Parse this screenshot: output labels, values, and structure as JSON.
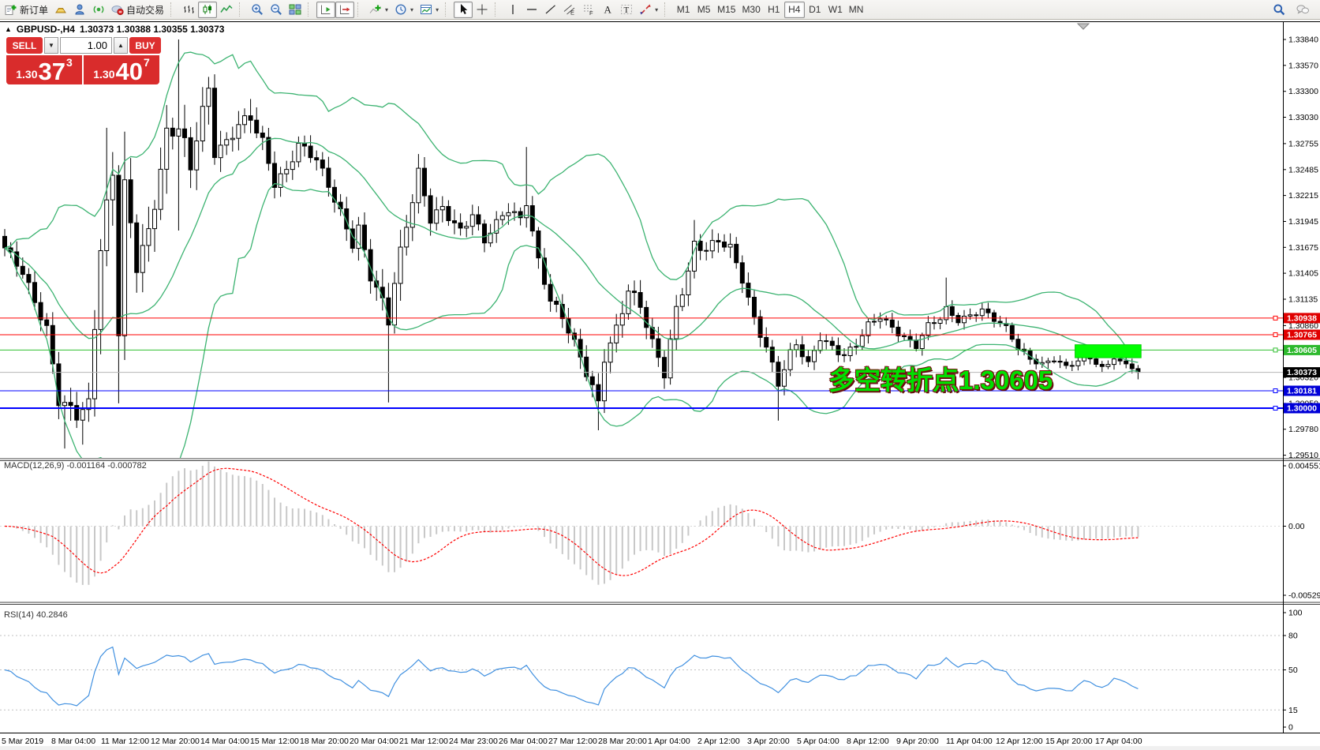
{
  "toolbar": {
    "groups": [
      {
        "name": "trade",
        "items": [
          {
            "name": "new-order-button",
            "icon": "new-order",
            "label": "新订单"
          },
          {
            "name": "market-watch-button",
            "icon": "market-watch"
          },
          {
            "name": "expert-advisors-button",
            "icon": "expert-advisors"
          },
          {
            "name": "signals-button",
            "icon": "signal"
          },
          {
            "name": "autotrading-button",
            "icon": "autotrading",
            "label": "自动交易"
          }
        ]
      },
      {
        "name": "chart-type",
        "items": [
          {
            "name": "bar-chart-button",
            "icon": "chart-bars"
          },
          {
            "name": "candlestick-chart-button",
            "icon": "chart-candles",
            "pressed": true
          },
          {
            "name": "line-chart-button",
            "icon": "chart-line"
          }
        ]
      },
      {
        "name": "zoom",
        "items": [
          {
            "name": "zoom-in-button",
            "icon": "zoom-in"
          },
          {
            "name": "zoom-out-button",
            "icon": "zoom-out"
          },
          {
            "name": "tile-windows-button",
            "icon": "tile-windows"
          }
        ]
      },
      {
        "name": "scroll",
        "items": [
          {
            "name": "auto-scroll-button",
            "icon": "autoscroll",
            "pressed": true
          },
          {
            "name": "chart-shift-button",
            "icon": "chartshift",
            "pressed": true
          }
        ]
      },
      {
        "name": "insert",
        "items": [
          {
            "name": "indicators-button",
            "icon": "indicators",
            "caret": true
          },
          {
            "name": "periods-button",
            "icon": "periods",
            "caret": true
          },
          {
            "name": "templates-button",
            "icon": "templates",
            "caret": true
          }
        ]
      },
      {
        "name": "pointer",
        "items": [
          {
            "name": "cursor-button",
            "icon": "cursor",
            "pressed": true
          },
          {
            "name": "crosshair-button",
            "icon": "crosshair"
          }
        ]
      },
      {
        "name": "objects",
        "items": [
          {
            "name": "vertical-line-button",
            "icon": "vline"
          },
          {
            "name": "horizontal-line-button",
            "icon": "hline"
          },
          {
            "name": "trendline-button",
            "icon": "trendline"
          },
          {
            "name": "channel-button",
            "icon": "channel"
          },
          {
            "name": "fibonacci-button",
            "icon": "fibonacci"
          },
          {
            "name": "text-button",
            "icon": "text"
          },
          {
            "name": "text-label-button",
            "icon": "textlabel"
          },
          {
            "name": "arrows-button",
            "icon": "arrows",
            "caret": true
          }
        ]
      },
      {
        "name": "timeframes",
        "items": [
          {
            "name": "tf-m1",
            "label": "M1",
            "tf": true
          },
          {
            "name": "tf-m5",
            "label": "M5",
            "tf": true
          },
          {
            "name": "tf-m15",
            "label": "M15",
            "tf": true
          },
          {
            "name": "tf-m30",
            "label": "M30",
            "tf": true
          },
          {
            "name": "tf-h1",
            "label": "H1",
            "tf": true
          },
          {
            "name": "tf-h4",
            "label": "H4",
            "tf": true,
            "pressed": true
          },
          {
            "name": "tf-d1",
            "label": "D1",
            "tf": true
          },
          {
            "name": "tf-w1",
            "label": "W1",
            "tf": true
          },
          {
            "name": "tf-mn",
            "label": "MN",
            "tf": true
          }
        ]
      }
    ],
    "right_items": [
      {
        "name": "search-button",
        "icon": "search"
      },
      {
        "name": "chat-button",
        "icon": "chat"
      }
    ]
  },
  "quote_panel": {
    "sell_label": "SELL",
    "buy_label": "BUY",
    "volume": "1.00",
    "spin_down": "▼",
    "spin_up": "▲",
    "sell_small": "1.30",
    "sell_big": "37",
    "sell_sup": "3",
    "buy_small": "1.30",
    "buy_big": "40",
    "buy_sup": "7",
    "red": "#d92c2c"
  },
  "chart": {
    "collapse_arrow": "▲",
    "symbol": "GBPUSD-,H4",
    "ohlc": "1.30373 1.30388 1.30355 1.30373",
    "bid": 1.30373,
    "bid_label": "1.30373",
    "price_ticks": [
      "1.33840",
      "1.33570",
      "1.33300",
      "1.33030",
      "1.32755",
      "1.32485",
      "1.32215",
      "1.31945",
      "1.31675",
      "1.31405",
      "1.31135",
      "1.30860",
      "1.30590",
      "1.30320",
      "1.30050",
      "1.29780",
      "1.29510"
    ],
    "time_labels": [
      "5 Mar 2019",
      "8 Mar 04:00",
      "11 Mar 12:00",
      "12 Mar 20:00",
      "14 Mar 04:00",
      "15 Mar 12:00",
      "18 Mar 20:00",
      "20 Mar 04:00",
      "21 Mar 12:00",
      "24 Mar 23:00",
      "26 Mar 04:00",
      "27 Mar 12:00",
      "28 Mar 20:00",
      "1 Apr 04:00",
      "2 Apr 12:00",
      "3 Apr 20:00",
      "5 Apr 04:00",
      "8 Apr 12:00",
      "9 Apr 20:00",
      "11 Apr 04:00",
      "12 Apr 12:00",
      "15 Apr 20:00",
      "17 Apr 04:00"
    ],
    "hlines": [
      {
        "label": "1.30938",
        "price": 1.30938,
        "color": "#ff0000",
        "label_bg": "#e00000",
        "width": 1
      },
      {
        "label": "1.30765",
        "price": 1.30765,
        "color": "#ff0000",
        "label_bg": "#e00000",
        "width": 1
      },
      {
        "label": "1.30605",
        "price": 1.30605,
        "color": "#2fbf2f",
        "label_bg": "#2db92d",
        "width": 1
      },
      {
        "label": "1.30181",
        "price": 1.30181,
        "color": "#0000ff",
        "label_bg": "#0000d8",
        "width": 1
      },
      {
        "label": "1.30000",
        "price": 1.3,
        "color": "#0000ff",
        "label_bg": "#0000d8",
        "width": 2
      }
    ],
    "annotation": {
      "text": "多空转折点1.30605",
      "color": "#00e000"
    },
    "highlight_box": {
      "price_top": 1.3066,
      "price_bottom": 1.30525,
      "bar_start": 178.5,
      "bar_end": 189.5,
      "color": "#00ff00"
    }
  },
  "chart_data": [
    {
      "type": "candlestick",
      "symbol": "GBPUSD-",
      "timeframe": "H4",
      "bars": 190,
      "ylim": [
        1.2951,
        1.3384
      ],
      "bid": 1.30373,
      "bull_fill": "#ffffff",
      "bear_fill": "#000000",
      "wick_color": "#000000",
      "close_anchors": [
        [
          0,
          1.3165
        ],
        [
          3,
          1.314
        ],
        [
          7,
          1.3085
        ],
        [
          9,
          1.301
        ],
        [
          12,
          1.299
        ],
        [
          14,
          1.3
        ],
        [
          16,
          1.317
        ],
        [
          18,
          1.325
        ],
        [
          19,
          1.309
        ],
        [
          20,
          1.3235
        ],
        [
          22,
          1.315
        ],
        [
          24,
          1.3175
        ],
        [
          26,
          1.3245
        ],
        [
          27,
          1.328
        ],
        [
          29,
          1.33
        ],
        [
          31,
          1.3255
        ],
        [
          32,
          1.329
        ],
        [
          34,
          1.333
        ],
        [
          35,
          1.3265
        ],
        [
          37,
          1.3272
        ],
        [
          39,
          1.3295
        ],
        [
          41,
          1.3305
        ],
        [
          43,
          1.328
        ],
        [
          45,
          1.3235
        ],
        [
          47,
          1.3245
        ],
        [
          49,
          1.3272
        ],
        [
          52,
          1.326
        ],
        [
          54,
          1.3235
        ],
        [
          56,
          1.3205
        ],
        [
          58,
          1.317
        ],
        [
          59,
          1.3185
        ],
        [
          61,
          1.3135
        ],
        [
          64,
          1.3095
        ],
        [
          65,
          1.3135
        ],
        [
          67,
          1.3195
        ],
        [
          69,
          1.3245
        ],
        [
          71,
          1.3195
        ],
        [
          73,
          1.3205
        ],
        [
          76,
          1.3185
        ],
        [
          78,
          1.3205
        ],
        [
          80,
          1.3175
        ],
        [
          81,
          1.3185
        ],
        [
          84,
          1.3205
        ],
        [
          86,
          1.3195
        ],
        [
          87,
          1.3215
        ],
        [
          89,
          1.3155
        ],
        [
          91,
          1.3115
        ],
        [
          93,
          1.3095
        ],
        [
          95,
          1.3065
        ],
        [
          97,
          1.3035
        ],
        [
          99,
          1.3005
        ],
        [
          100,
          1.3055
        ],
        [
          102,
          1.3085
        ],
        [
          104,
          1.3125
        ],
        [
          106,
          1.3105
        ],
        [
          108,
          1.3065
        ],
        [
          110,
          1.3035
        ],
        [
          112,
          1.3105
        ],
        [
          114,
          1.3145
        ],
        [
          115,
          1.3172
        ],
        [
          117,
          1.3165
        ],
        [
          119,
          1.3172
        ],
        [
          121,
          1.3165
        ],
        [
          123,
          1.3135
        ],
        [
          125,
          1.3095
        ],
        [
          127,
          1.3065
        ],
        [
          129,
          1.3025
        ],
        [
          131,
          1.3055
        ],
        [
          132,
          1.3065
        ],
        [
          134,
          1.3045
        ],
        [
          136,
          1.3075
        ],
        [
          138,
          1.3065
        ],
        [
          140,
          1.3055
        ],
        [
          142,
          1.3065
        ],
        [
          144,
          1.3085
        ],
        [
          146,
          1.3095
        ],
        [
          148,
          1.3085
        ],
        [
          150,
          1.3075
        ],
        [
          152,
          1.3065
        ],
        [
          154,
          1.3085
        ],
        [
          156,
          1.3092
        ],
        [
          157,
          1.3102
        ],
        [
          159,
          1.3092
        ],
        [
          161,
          1.3098
        ],
        [
          163,
          1.3103
        ],
        [
          165,
          1.3092
        ],
        [
          167,
          1.3082
        ],
        [
          169,
          1.3062
        ],
        [
          171,
          1.3052
        ],
        [
          173,
          1.3047
        ],
        [
          175,
          1.3052
        ],
        [
          177,
          1.3042
        ],
        [
          179,
          1.3048
        ],
        [
          181,
          1.3052
        ],
        [
          183,
          1.3042
        ],
        [
          185,
          1.3052
        ],
        [
          187,
          1.3046
        ],
        [
          189,
          1.30373
        ]
      ],
      "vol_anchors": [
        [
          0,
          0.9
        ],
        [
          8,
          1.3
        ],
        [
          14,
          1.6
        ],
        [
          16,
          2.6
        ],
        [
          22,
          2.2
        ],
        [
          30,
          2.4
        ],
        [
          36,
          1.4
        ],
        [
          50,
          1.0
        ],
        [
          60,
          1.2
        ],
        [
          64,
          1.9
        ],
        [
          68,
          1.4
        ],
        [
          80,
          0.9
        ],
        [
          95,
          1.1
        ],
        [
          100,
          1.3
        ],
        [
          112,
          1.1
        ],
        [
          125,
          1.0
        ],
        [
          135,
          0.8
        ],
        [
          150,
          0.7
        ],
        [
          170,
          0.6
        ],
        [
          189,
          0.5
        ]
      ],
      "spikes": [
        [
          10,
          null,
          1.2958
        ],
        [
          13,
          null,
          1.2962
        ],
        [
          17,
          1.3292,
          null
        ],
        [
          19,
          null,
          1.3005
        ],
        [
          20,
          1.3288,
          null
        ],
        [
          29,
          1.3384,
          1.3185
        ],
        [
          34,
          1.3345,
          null
        ],
        [
          41,
          1.3322,
          null
        ],
        [
          64,
          null,
          1.3006
        ],
        [
          87,
          1.3272,
          null
        ],
        [
          99,
          null,
          1.2977
        ],
        [
          115,
          1.3196,
          null
        ],
        [
          129,
          null,
          1.2987
        ],
        [
          157,
          1.3136,
          null
        ],
        [
          189,
          null,
          1.303
        ]
      ],
      "overlays": {
        "bollinger": {
          "period": 20,
          "deviation": 2,
          "color": "#3cb371"
        }
      }
    },
    {
      "type": "macd",
      "params": [
        12,
        26,
        9
      ],
      "label": "MACD(12,26,9) -0.001164 -0.000782",
      "current": [
        -0.001164,
        -0.000782
      ],
      "ylim": [
        -0.005295,
        0.004551
      ],
      "axis_labels": [
        "0.004551",
        "0.00",
        "-0.005295"
      ],
      "hist_color": "#c8c8c8",
      "signal_color": "#ff0000"
    },
    {
      "type": "rsi",
      "period": 14,
      "current": 40.2846,
      "label": "RSI(14) 40.2846",
      "ylim": [
        0,
        100
      ],
      "levels": [
        80,
        50,
        15
      ],
      "axis_labels": [
        "100",
        "80",
        "50",
        "15",
        "0"
      ],
      "line_color": "#4090e0",
      "level_color": "#c0c0c0"
    }
  ]
}
